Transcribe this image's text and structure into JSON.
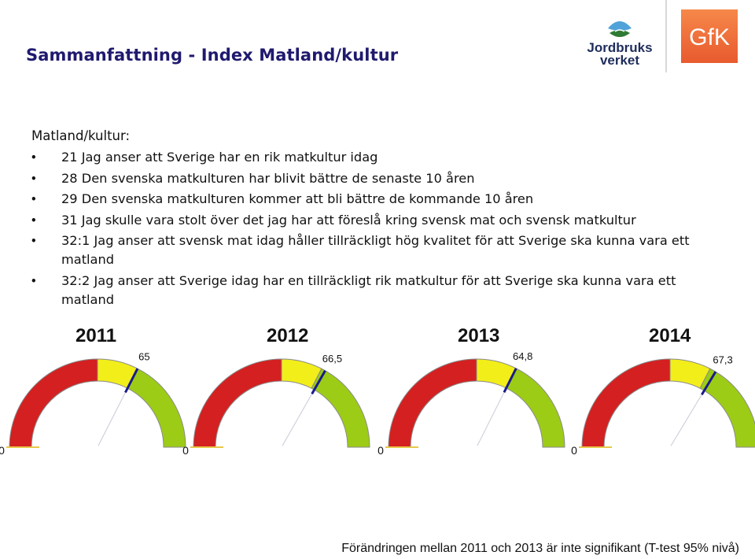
{
  "title": "Sammanfattning - Index Matland/kultur",
  "logos": {
    "jordbruksverket_line1": "Jordbruks",
    "jordbruksverket_line2": "verket",
    "gfk": "GfK"
  },
  "intro": "Matland/kultur:",
  "bullets": [
    "21 Jag anser att Sverige har en rik matkultur idag",
    "28 Den svenska matkulturen har blivit bättre de senaste 10 åren",
    "29 Den svenska matkulturen kommer att bli bättre de kommande 10 åren",
    "31 Jag skulle vara stolt över det jag har att föreslå kring svensk mat och svensk matkultur",
    "32:1 Jag anser att svensk mat idag håller tillräckligt hög kvalitet för att Sverige ska kunna vara ett matland",
    "32:2 Jag anser att Sverige idag har en tillräckligt rik matkultur för att Sverige ska kunna vara ett matland"
  ],
  "chart_data": {
    "type": "gauge",
    "range": [
      0,
      100
    ],
    "min_label": "0",
    "zones": [
      {
        "from": 0,
        "to": 50,
        "color": "#d42020"
      },
      {
        "from": 50,
        "to": 65,
        "color": "#f2ee1a"
      },
      {
        "from": 65,
        "to": 100,
        "color": "#9ccc16"
      }
    ],
    "gauges": [
      {
        "year": "2011",
        "value": 65,
        "label": "65"
      },
      {
        "year": "2012",
        "value": 66.5,
        "label": "66,5"
      },
      {
        "year": "2013",
        "value": 64.8,
        "label": "64,8"
      },
      {
        "year": "2014",
        "value": 67.3,
        "label": "67,3"
      }
    ]
  },
  "footer": "Förändringen mellan 2011 och 2013 är inte signifikant (T-test 95% nivå)",
  "colors": {
    "title": "#1f1a6e",
    "needle": "#1a1a8c",
    "gfk_orange": "#ef6b3a"
  }
}
